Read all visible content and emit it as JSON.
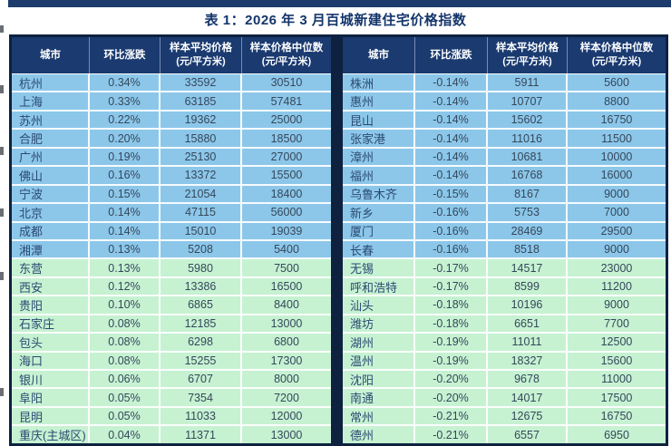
{
  "title": "表 1：2026 年 3 月百城新建住宅价格指数",
  "columns": [
    {
      "label": "城市",
      "sub": ""
    },
    {
      "label": "环比涨跌",
      "sub": ""
    },
    {
      "label": "样本平均价格",
      "sub": "(元/平方米)"
    },
    {
      "label": "样本价格中位数",
      "sub": "(元/平方米)"
    }
  ],
  "left_table": {
    "rows": [
      {
        "city": "杭州",
        "change": "0.34%",
        "avg": "33592",
        "median": "30510"
      },
      {
        "city": "上海",
        "change": "0.33%",
        "avg": "63185",
        "median": "57481"
      },
      {
        "city": "苏州",
        "change": "0.22%",
        "avg": "19362",
        "median": "25000"
      },
      {
        "city": "合肥",
        "change": "0.20%",
        "avg": "15880",
        "median": "18500"
      },
      {
        "city": "广州",
        "change": "0.19%",
        "avg": "25130",
        "median": "27000"
      },
      {
        "city": "佛山",
        "change": "0.16%",
        "avg": "13372",
        "median": "15500"
      },
      {
        "city": "宁波",
        "change": "0.15%",
        "avg": "21054",
        "median": "18400"
      },
      {
        "city": "北京",
        "change": "0.14%",
        "avg": "47115",
        "median": "56000"
      },
      {
        "city": "成都",
        "change": "0.14%",
        "avg": "15010",
        "median": "19039"
      },
      {
        "city": "湘潭",
        "change": "0.13%",
        "avg": "5208",
        "median": "5400"
      },
      {
        "city": "东营",
        "change": "0.13%",
        "avg": "5980",
        "median": "7500"
      },
      {
        "city": "西安",
        "change": "0.12%",
        "avg": "13386",
        "median": "16500"
      },
      {
        "city": "贵阳",
        "change": "0.10%",
        "avg": "6865",
        "median": "8400"
      },
      {
        "city": "石家庄",
        "change": "0.08%",
        "avg": "12185",
        "median": "13000"
      },
      {
        "city": "包头",
        "change": "0.08%",
        "avg": "6298",
        "median": "6800"
      },
      {
        "city": "海口",
        "change": "0.08%",
        "avg": "15255",
        "median": "17300"
      },
      {
        "city": "银川",
        "change": "0.06%",
        "avg": "6707",
        "median": "8000"
      },
      {
        "city": "阜阳",
        "change": "0.05%",
        "avg": "7354",
        "median": "7200"
      },
      {
        "city": "昆明",
        "change": "0.05%",
        "avg": "11033",
        "median": "12000"
      },
      {
        "city": "重庆(主城区)",
        "change": "0.04%",
        "avg": "11371",
        "median": "13000"
      }
    ]
  },
  "right_table": {
    "rows": [
      {
        "city": "株洲",
        "change": "-0.14%",
        "avg": "5911",
        "median": "5600"
      },
      {
        "city": "惠州",
        "change": "-0.14%",
        "avg": "10707",
        "median": "8800"
      },
      {
        "city": "昆山",
        "change": "-0.14%",
        "avg": "15602",
        "median": "16750"
      },
      {
        "city": "张家港",
        "change": "-0.14%",
        "avg": "11016",
        "median": "11500"
      },
      {
        "city": "漳州",
        "change": "-0.14%",
        "avg": "10681",
        "median": "10000"
      },
      {
        "city": "福州",
        "change": "-0.14%",
        "avg": "16768",
        "median": "16000"
      },
      {
        "city": "乌鲁木齐",
        "change": "-0.15%",
        "avg": "8167",
        "median": "9000"
      },
      {
        "city": "新乡",
        "change": "-0.16%",
        "avg": "5753",
        "median": "7000"
      },
      {
        "city": "厦门",
        "change": "-0.16%",
        "avg": "28469",
        "median": "29500"
      },
      {
        "city": "长春",
        "change": "-0.16%",
        "avg": "8518",
        "median": "9000"
      },
      {
        "city": "无锡",
        "change": "-0.17%",
        "avg": "14517",
        "median": "23000"
      },
      {
        "city": "呼和浩特",
        "change": "-0.17%",
        "avg": "8599",
        "median": "11200"
      },
      {
        "city": "汕头",
        "change": "-0.18%",
        "avg": "10196",
        "median": "9000"
      },
      {
        "city": "潍坊",
        "change": "-0.18%",
        "avg": "6651",
        "median": "7700"
      },
      {
        "city": "湖州",
        "change": "-0.19%",
        "avg": "11011",
        "median": "12500"
      },
      {
        "city": "温州",
        "change": "-0.19%",
        "avg": "18327",
        "median": "15600"
      },
      {
        "city": "沈阳",
        "change": "-0.20%",
        "avg": "9678",
        "median": "11000"
      },
      {
        "city": "南通",
        "change": "-0.20%",
        "avg": "14017",
        "median": "17500"
      },
      {
        "city": "常州",
        "change": "-0.21%",
        "avg": "12675",
        "median": "16750"
      },
      {
        "city": "德州",
        "change": "-0.21%",
        "avg": "6557",
        "median": "6950"
      }
    ]
  },
  "colors": {
    "header_bg": "#1a3a70",
    "row_blue": "#8cc7ea",
    "row_green": "#c6f2d2",
    "border_dark": "#0e2240",
    "topbar": "#1d3c6d",
    "title_text": "#14356b"
  }
}
